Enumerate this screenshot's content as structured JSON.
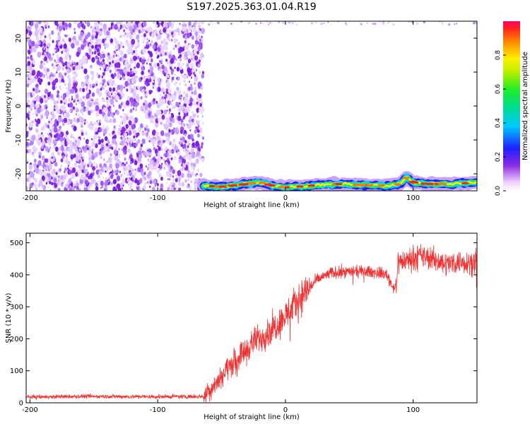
{
  "title": "S197.2025.363.01.04.R19",
  "chart_data": [
    {
      "type": "heatmap",
      "xlabel": "Height of straight line (km)",
      "ylabel": "Frequency (Hz)",
      "xlim": [
        -203,
        150
      ],
      "ylim": [
        -25,
        25
      ],
      "xticks": [
        -200,
        -100,
        0,
        100
      ],
      "yticks": [
        -20,
        -10,
        0,
        10,
        20
      ],
      "colorbar": {
        "label": "Normalized spectral amplitude",
        "range": [
          0,
          1
        ],
        "ticks": [
          "0.0",
          "0.2",
          "0.4",
          "0.6",
          "0.8"
        ]
      },
      "noise_region_x": [
        -203,
        -64
      ],
      "signal_track": {
        "x": [
          -64,
          -50,
          -30,
          -20,
          -10,
          0,
          20,
          40,
          60,
          80,
          90,
          95,
          100,
          110,
          130,
          150
        ],
        "y": [
          -23.5,
          -23.8,
          -23.0,
          -22.5,
          -23.5,
          -24.0,
          -23.5,
          -23.0,
          -23.3,
          -23.5,
          -23.0,
          -21.0,
          -22.5,
          -23.0,
          -23.0,
          -22.5
        ]
      }
    },
    {
      "type": "line",
      "xlabel": "Height of straight line (km)",
      "ylabel": "SNR (10 * v/v)",
      "xlim": [
        -203,
        150
      ],
      "ylim": [
        0,
        530
      ],
      "xticks": [
        -200,
        -100,
        0,
        100
      ],
      "yticks": [
        0,
        100,
        200,
        300,
        400,
        500
      ],
      "color": "#ee3333",
      "series": [
        {
          "x": [
            -203,
            -150,
            -100,
            -64,
            -55,
            -45,
            -35,
            -25,
            -15,
            -5,
            5,
            15,
            25,
            35,
            45,
            55,
            65,
            75,
            80,
            83,
            85,
            87,
            88,
            95,
            105,
            115,
            125,
            135,
            150
          ],
          "values": [
            18,
            20,
            19,
            20,
            60,
            110,
            150,
            190,
            215,
            250,
            295,
            345,
            385,
            405,
            410,
            410,
            410,
            405,
            400,
            370,
            360,
            370,
            440,
            445,
            460,
            450,
            435,
            440,
            440
          ]
        }
      ]
    }
  ]
}
